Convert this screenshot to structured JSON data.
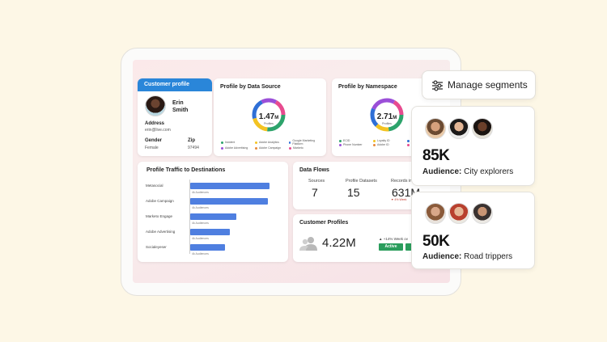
{
  "customer_profile": {
    "header": "Customer profile",
    "first_name": "Erin",
    "last_name": "Smith",
    "address_label": "Address",
    "email": "erin@live.com",
    "gender_label": "Gender",
    "gender": "Female",
    "zip_label": "Zip",
    "zip": "97494"
  },
  "profile_by_source": {
    "title": "Profile by Data Source",
    "total": "1.47",
    "unit": "M",
    "caption": "Profiles",
    "legend": [
      "Incident",
      "Adobe Analytics",
      "Google Marketing Platform",
      "Adobe Advertising",
      "Adobe Campaign",
      "Marketo"
    ],
    "colors": [
      "#2da36b",
      "#f3c322",
      "#2f6fd6",
      "#9b4fd8",
      "#e8893a",
      "#e74b8f"
    ]
  },
  "profile_by_namespace": {
    "title": "Profile by Namespace",
    "total": "2.71",
    "unit": "M",
    "caption": "Profiles",
    "legend": [
      "ECID",
      "Loyalty ID",
      "Email",
      "Phone Number",
      "Adobe ID",
      "CRM ID"
    ],
    "colors": [
      "#2da36b",
      "#f3c322",
      "#2f6fd6",
      "#9b4fd8",
      "#e8893a",
      "#e74b8f"
    ]
  },
  "traffic": {
    "title": "Profile Traffic to Destinations",
    "rows": [
      {
        "label": "Metasocial",
        "sub": "4k Audiences",
        "value": 1.0
      },
      {
        "label": "Adobe Campaign",
        "sub": "4k Audiences",
        "value": 0.98
      },
      {
        "label": "Marketo Engage",
        "sub": "4k Audiences",
        "value": 0.58
      },
      {
        "label": "Adobe Advertising",
        "sub": "4k Audiences",
        "value": 0.5
      },
      {
        "label": "Socialeyeser",
        "sub": "4k Audiences",
        "value": 0.44
      }
    ]
  },
  "data_flows": {
    "title": "Data Flows",
    "sources_label": "Sources",
    "sources_value": "7",
    "datasets_label": "Profile Datasets",
    "datasets_value": "15",
    "records_label": "Records in",
    "records_value": "631M",
    "records_change": "▼ 4% Week"
  },
  "customer_profiles": {
    "title": "Customer Profiles",
    "total": "4.22M",
    "change": "▲ +14% Week ov",
    "status": "Active"
  },
  "manage_segments": {
    "label": "Manage segments"
  },
  "segments": [
    {
      "count": "85K",
      "audience_label": "Audience:",
      "audience": "City explorers"
    },
    {
      "count": "50K",
      "audience_label": "Audience:",
      "audience": "Road trippers"
    }
  ],
  "colors": {
    "accent_blue": "#2a86d9",
    "bar_blue": "#4f7fe0",
    "active_green": "#2a9d5c"
  }
}
